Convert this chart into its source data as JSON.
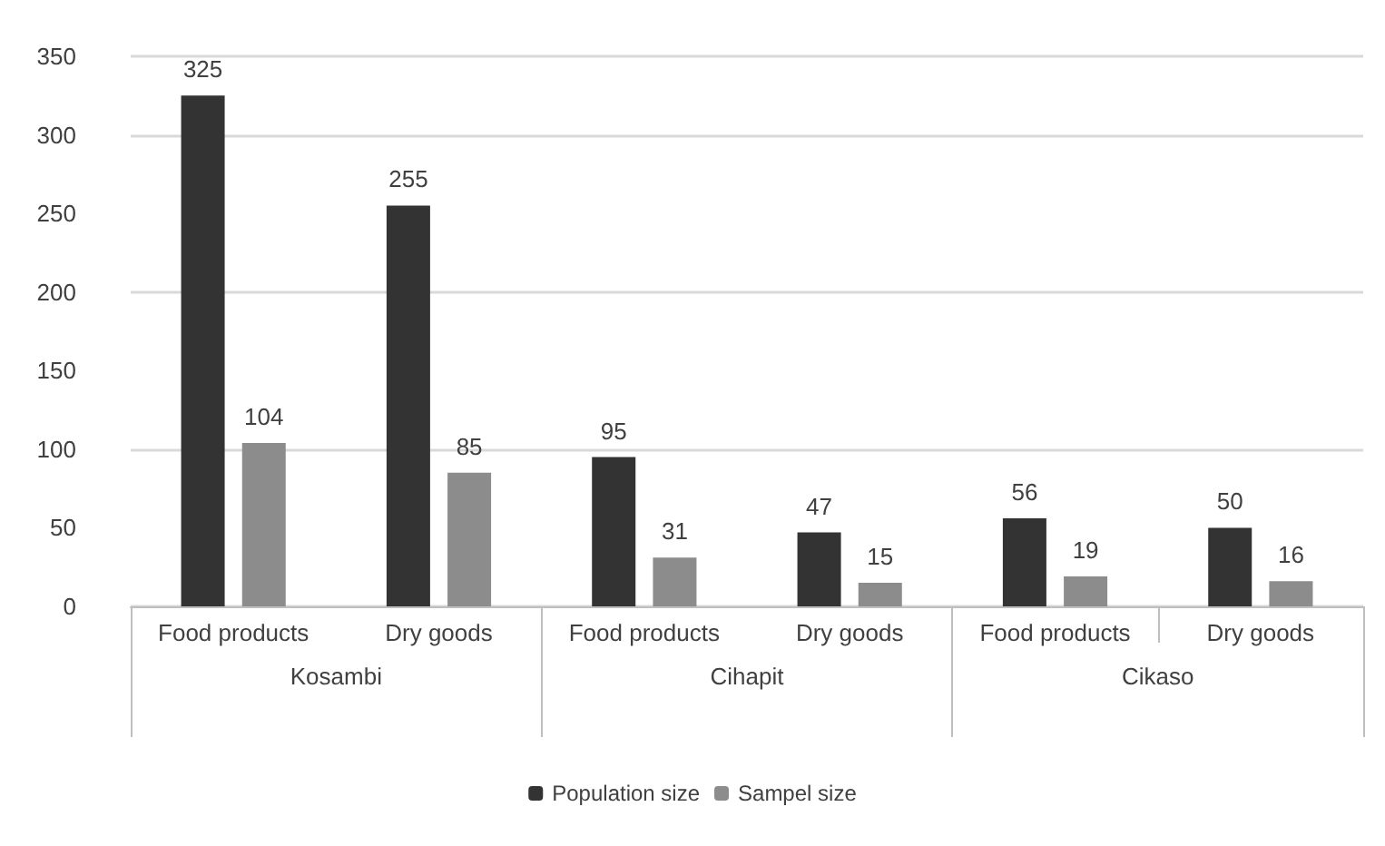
{
  "chart_data": {
    "type": "bar",
    "categories": [
      "Food products",
      "Dry goods",
      "Food products",
      "Dry goods",
      "Food products",
      "Dry goods"
    ],
    "series": [
      {
        "name": "Population size",
        "color": "#333333",
        "values": [
          325,
          255,
          95,
          47,
          56,
          50
        ]
      },
      {
        "name": "Sampel size",
        "color": "#8c8c8c",
        "values": [
          104,
          85,
          31,
          15,
          19,
          16
        ]
      }
    ],
    "annotations": [
      "Kosambi",
      "Cihapit",
      "Cikaso"
    ],
    "ylim": [
      0,
      350
    ],
    "yticks": [
      0,
      50,
      100,
      150,
      200,
      250,
      300,
      350
    ],
    "grid": "y",
    "legend": "bottom",
    "data_labels": true
  }
}
